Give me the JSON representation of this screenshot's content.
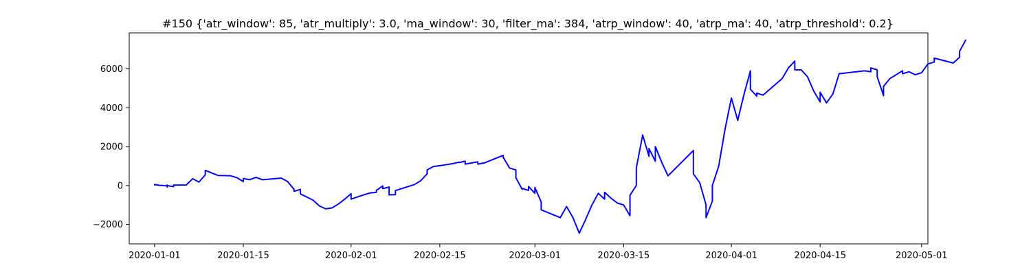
{
  "chart_data": {
    "type": "line",
    "title": "#150 {'atr_window': 85, 'atr_multiply': 3.0, 'ma_window': 30, 'filter_ma': 384, 'atrp_window': 40, 'atrp_ma': 40, 'atrp_threshold': 0.2}",
    "xlabel": "",
    "ylabel": "",
    "x_type": "date",
    "xlim": [
      "2019-12-28",
      "2020-05-02"
    ],
    "ylim": [
      -3000,
      7850
    ],
    "grid": false,
    "line_color": "#0000ff",
    "x_ticks": [
      "2020-01-01",
      "2020-01-15",
      "2020-02-01",
      "2020-02-15",
      "2020-03-01",
      "2020-03-15",
      "2020-04-01",
      "2020-04-15",
      "2020-05-01"
    ],
    "y_ticks": [
      -2000,
      0,
      2000,
      4000,
      6000
    ],
    "y_tick_labels": [
      "−2000",
      "0",
      "2000",
      "4000",
      "6000"
    ],
    "series": [
      {
        "points": [
          [
            "2020-01-01",
            0
          ],
          [
            "2020-01-01",
            50
          ],
          [
            "2020-01-02",
            0
          ],
          [
            "2020-01-02",
            10
          ],
          [
            "2020-01-03",
            -20
          ],
          [
            "2020-01-03",
            30
          ],
          [
            "2020-01-03",
            -80
          ],
          [
            "2020-01-03",
            0
          ],
          [
            "2020-01-04",
            -60
          ],
          [
            "2020-01-04",
            20
          ],
          [
            "2020-01-06",
            30
          ],
          [
            "2020-01-07",
            350
          ],
          [
            "2020-01-08",
            180
          ],
          [
            "2020-01-09",
            550
          ],
          [
            "2020-01-09",
            780
          ],
          [
            "2020-01-10",
            650
          ],
          [
            "2020-01-11",
            520
          ],
          [
            "2020-01-13",
            500
          ],
          [
            "2020-01-14",
            400
          ],
          [
            "2020-01-15",
            200
          ],
          [
            "2020-01-15",
            360
          ],
          [
            "2020-01-16",
            300
          ],
          [
            "2020-01-17",
            420
          ],
          [
            "2020-01-18",
            300
          ],
          [
            "2020-01-21",
            380
          ],
          [
            "2020-01-22",
            200
          ],
          [
            "2020-01-23",
            -200
          ],
          [
            "2020-01-23",
            -300
          ],
          [
            "2020-01-24",
            -200
          ],
          [
            "2020-01-24",
            -430
          ],
          [
            "2020-01-26",
            -750
          ],
          [
            "2020-01-27",
            -1050
          ],
          [
            "2020-01-28",
            -1200
          ],
          [
            "2020-01-29",
            -1150
          ],
          [
            "2020-01-30",
            -950
          ],
          [
            "2020-01-31",
            -700
          ],
          [
            "2020-02-01",
            -420
          ],
          [
            "2020-02-01",
            -700
          ],
          [
            "2020-02-03",
            -480
          ],
          [
            "2020-02-04",
            -380
          ],
          [
            "2020-02-05",
            -350
          ],
          [
            "2020-02-05",
            -250
          ],
          [
            "2020-02-06",
            -20
          ],
          [
            "2020-02-06",
            -160
          ],
          [
            "2020-02-07",
            -80
          ],
          [
            "2020-02-07",
            -480
          ],
          [
            "2020-02-08",
            -470
          ],
          [
            "2020-02-08",
            -260
          ],
          [
            "2020-02-11",
            50
          ],
          [
            "2020-02-12",
            250
          ],
          [
            "2020-02-13",
            600
          ],
          [
            "2020-02-13",
            800
          ],
          [
            "2020-02-14",
            980
          ],
          [
            "2020-02-15",
            1020
          ],
          [
            "2020-02-17",
            1120
          ],
          [
            "2020-02-18",
            1200
          ],
          [
            "2020-02-18",
            1180
          ],
          [
            "2020-02-19",
            1250
          ],
          [
            "2020-02-19",
            1100
          ],
          [
            "2020-02-20",
            1160
          ],
          [
            "2020-02-21",
            1220
          ],
          [
            "2020-02-21",
            1100
          ],
          [
            "2020-02-22",
            1160
          ],
          [
            "2020-02-25",
            1550
          ],
          [
            "2020-02-25",
            1450
          ],
          [
            "2020-02-26",
            900
          ],
          [
            "2020-02-27",
            800
          ],
          [
            "2020-02-27",
            400
          ],
          [
            "2020-02-28",
            -200
          ],
          [
            "2020-02-28",
            -150
          ],
          [
            "2020-02-29",
            -250
          ],
          [
            "2020-02-29",
            -50
          ],
          [
            "2020-03-01",
            -400
          ],
          [
            "2020-03-01",
            -100
          ],
          [
            "2020-03-02",
            -850
          ],
          [
            "2020-03-02",
            -1250
          ],
          [
            "2020-03-05",
            -1650
          ],
          [
            "2020-03-06",
            -1080
          ],
          [
            "2020-03-07",
            -1650
          ],
          [
            "2020-03-08",
            -2450
          ],
          [
            "2020-03-09",
            -1750
          ],
          [
            "2020-03-10",
            -1000
          ],
          [
            "2020-03-11",
            -400
          ],
          [
            "2020-03-12",
            -700
          ],
          [
            "2020-03-12",
            -350
          ],
          [
            "2020-03-13",
            -650
          ],
          [
            "2020-03-14",
            -900
          ],
          [
            "2020-03-15",
            -1000
          ],
          [
            "2020-03-16",
            -1550
          ],
          [
            "2020-03-16",
            -500
          ],
          [
            "2020-03-17",
            0
          ],
          [
            "2020-03-17",
            900
          ],
          [
            "2020-03-18",
            2600
          ],
          [
            "2020-03-19",
            1500
          ],
          [
            "2020-03-19",
            1900
          ],
          [
            "2020-03-20",
            1250
          ],
          [
            "2020-03-20",
            2000
          ],
          [
            "2020-03-21",
            1200
          ],
          [
            "2020-03-22",
            500
          ],
          [
            "2020-03-26",
            1800
          ],
          [
            "2020-03-26",
            600
          ],
          [
            "2020-03-27",
            150
          ],
          [
            "2020-03-28",
            -1000
          ],
          [
            "2020-03-28",
            -1650
          ],
          [
            "2020-03-29",
            -800
          ],
          [
            "2020-03-29",
            0
          ],
          [
            "2020-03-30",
            1000
          ],
          [
            "2020-03-31",
            2900
          ],
          [
            "2020-04-01",
            4500
          ],
          [
            "2020-04-02",
            3350
          ],
          [
            "2020-04-03",
            4700
          ],
          [
            "2020-04-04",
            5900
          ],
          [
            "2020-04-04",
            4950
          ],
          [
            "2020-04-05",
            4600
          ],
          [
            "2020-04-05",
            4750
          ],
          [
            "2020-04-06",
            4650
          ],
          [
            "2020-04-09",
            5500
          ],
          [
            "2020-04-10",
            6050
          ],
          [
            "2020-04-11",
            6400
          ],
          [
            "2020-04-11",
            5950
          ],
          [
            "2020-04-12",
            5950
          ],
          [
            "2020-04-13",
            5600
          ],
          [
            "2020-04-14",
            4850
          ],
          [
            "2020-04-15",
            4300
          ],
          [
            "2020-04-15",
            4800
          ],
          [
            "2020-04-16",
            4250
          ],
          [
            "2020-04-17",
            4700
          ],
          [
            "2020-04-18",
            5750
          ],
          [
            "2020-04-22",
            5900
          ],
          [
            "2020-04-23",
            5850
          ],
          [
            "2020-04-23",
            6050
          ],
          [
            "2020-04-24",
            5950
          ],
          [
            "2020-04-24",
            5600
          ],
          [
            "2020-04-25",
            4620
          ],
          [
            "2020-04-25",
            5100
          ],
          [
            "2020-04-26",
            5500
          ],
          [
            "2020-04-28",
            5900
          ],
          [
            "2020-04-28",
            5750
          ],
          [
            "2020-04-29",
            5850
          ],
          [
            "2020-04-30",
            5700
          ],
          [
            "2020-05-01",
            5800
          ],
          [
            "2020-05-02",
            6250
          ],
          [
            "2020-05-03",
            6350
          ],
          [
            "2020-05-03",
            6550
          ],
          [
            "2020-05-06",
            6300
          ],
          [
            "2020-05-07",
            6600
          ],
          [
            "2020-05-07",
            6900
          ],
          [
            "2020-05-08",
            7500
          ]
        ]
      }
    ]
  }
}
